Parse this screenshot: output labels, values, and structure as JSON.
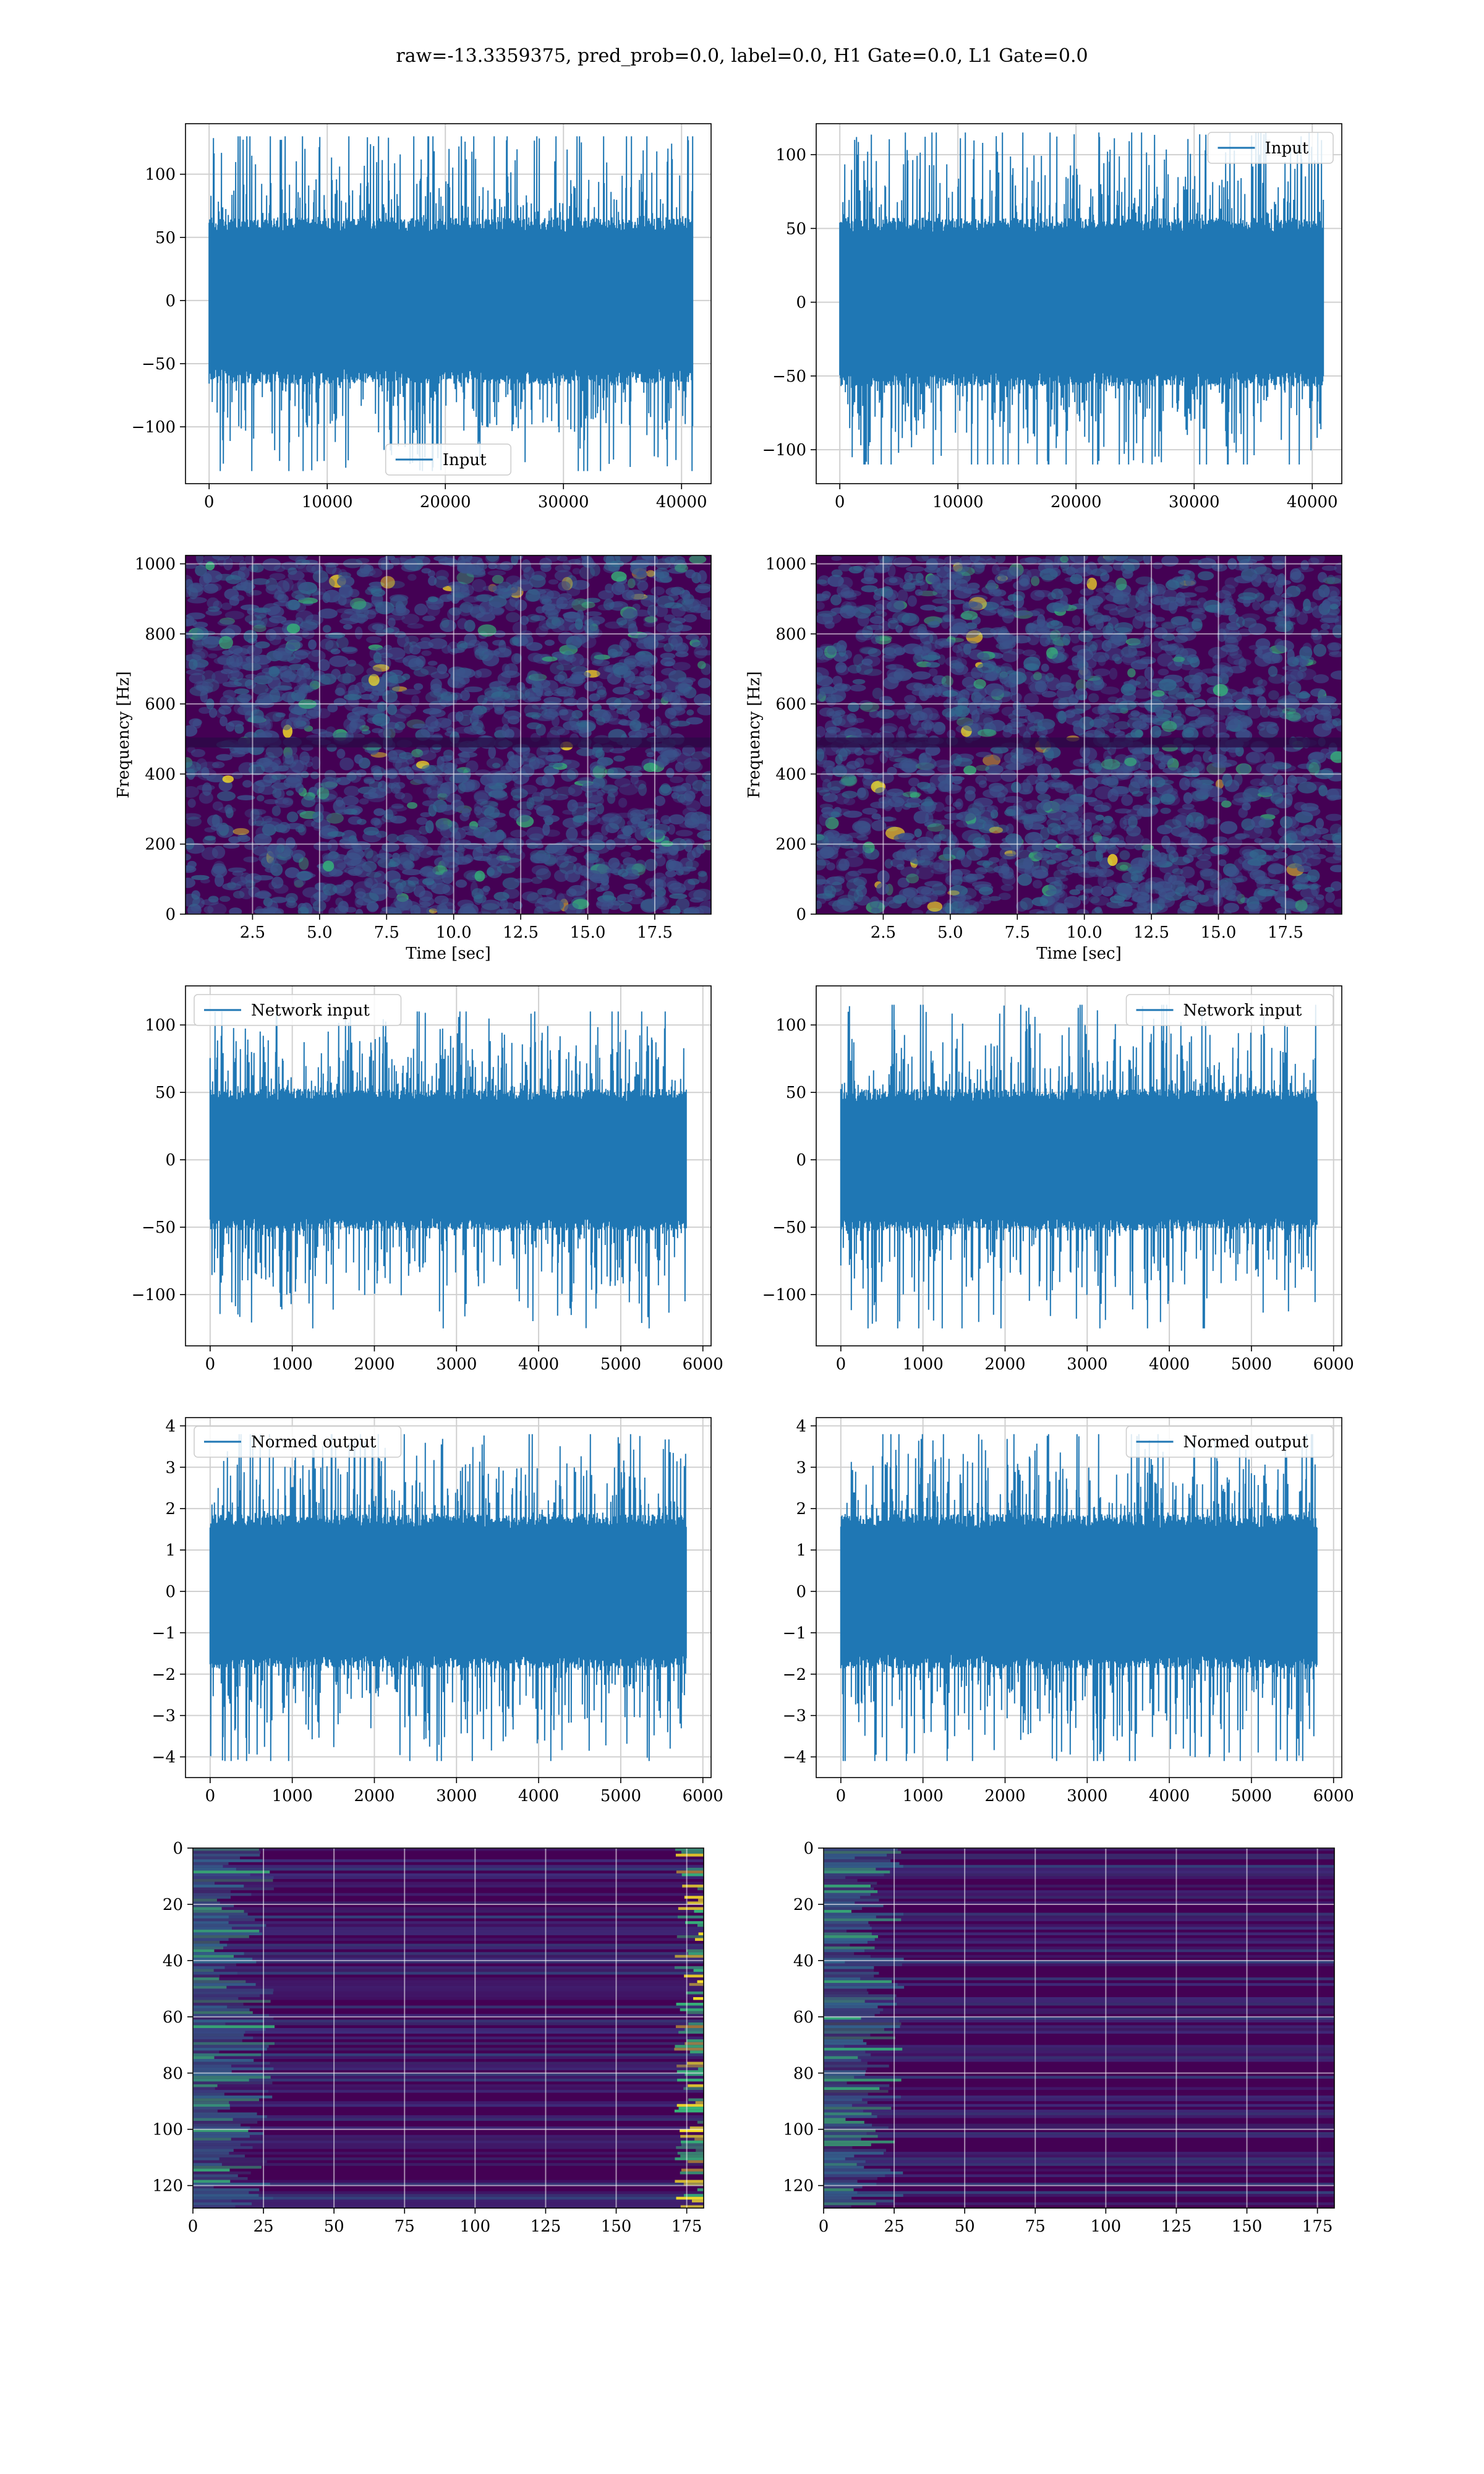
{
  "suptitle": "raw=-13.3359375, pred_prob=0.0, label=0.0, H1 Gate=0.0, L1 Gate=0.0",
  "colors": {
    "line": "#1f77b4",
    "grid": "#d0d0d0",
    "viridis_dark": "#440154",
    "viridis_mid": "#31688e",
    "viridis_teal": "#35b779",
    "viridis_yellow": "#fde725"
  },
  "chart_data": [
    {
      "id": "input-left",
      "type": "line",
      "legend": "Input",
      "legend_loc": "lower-center",
      "xlim": [
        -2000,
        42500
      ],
      "ylim": [
        -145,
        140
      ],
      "xticks": [
        0,
        10000,
        20000,
        30000,
        40000
      ],
      "xtick_labels": [
        "0",
        "10000",
        "20000",
        "30000",
        "40000"
      ],
      "yticks": [
        -100,
        -50,
        0,
        50,
        100
      ],
      "ytick_labels": [
        "−100",
        "−50",
        "0",
        "50",
        "100"
      ],
      "xlabel": "",
      "ylabel": "",
      "grid": true,
      "series": {
        "x_start": 0,
        "x_end": 40960,
        "amp_p99": 60,
        "amp_max": 130,
        "amp_min": -135
      }
    },
    {
      "id": "input-right",
      "type": "line",
      "legend": "Input",
      "legend_loc": "upper-right",
      "xlim": [
        -2000,
        42500
      ],
      "ylim": [
        -123,
        121
      ],
      "xticks": [
        0,
        10000,
        20000,
        30000,
        40000
      ],
      "xtick_labels": [
        "0",
        "10000",
        "20000",
        "30000",
        "40000"
      ],
      "yticks": [
        -100,
        -50,
        0,
        50,
        100
      ],
      "ytick_labels": [
        "−100",
        "−50",
        "0",
        "50",
        "100"
      ],
      "xlabel": "",
      "ylabel": "",
      "grid": true,
      "series": {
        "x_start": 0,
        "x_end": 40960,
        "amp_p99": 52,
        "amp_max": 115,
        "amp_min": -110
      }
    },
    {
      "id": "spectrogram-left",
      "type": "heatmap",
      "colormap": "viridis",
      "xlim": [
        0,
        19.6
      ],
      "ylim": [
        0,
        1024
      ],
      "xticks": [
        2.5,
        5.0,
        7.5,
        10.0,
        12.5,
        15.0,
        17.5
      ],
      "xtick_labels": [
        "2.5",
        "5.0",
        "7.5",
        "10.0",
        "12.5",
        "15.0",
        "17.5"
      ],
      "yticks": [
        0,
        200,
        400,
        600,
        800,
        1000
      ],
      "ytick_labels": [
        "0",
        "200",
        "400",
        "600",
        "800",
        "1000"
      ],
      "xlabel": "Time [sec]",
      "ylabel": "Frequency [Hz]",
      "grid": true
    },
    {
      "id": "spectrogram-right",
      "type": "heatmap",
      "colormap": "viridis",
      "xlim": [
        0,
        19.6
      ],
      "ylim": [
        0,
        1024
      ],
      "xticks": [
        2.5,
        5.0,
        7.5,
        10.0,
        12.5,
        15.0,
        17.5
      ],
      "xtick_labels": [
        "2.5",
        "5.0",
        "7.5",
        "10.0",
        "12.5",
        "15.0",
        "17.5"
      ],
      "yticks": [
        0,
        200,
        400,
        600,
        800,
        1000
      ],
      "ytick_labels": [
        "0",
        "200",
        "400",
        "600",
        "800",
        "1000"
      ],
      "xlabel": "Time [sec]",
      "ylabel": "Frequency [Hz]",
      "grid": true
    },
    {
      "id": "network-input-left",
      "type": "line",
      "legend": "Network input",
      "legend_loc": "upper-left",
      "xlim": [
        -300,
        6100
      ],
      "ylim": [
        -138,
        129
      ],
      "xticks": [
        0,
        1000,
        2000,
        3000,
        4000,
        5000,
        6000
      ],
      "xtick_labels": [
        "0",
        "1000",
        "2000",
        "3000",
        "4000",
        "5000",
        "6000"
      ],
      "yticks": [
        -100,
        -50,
        0,
        50,
        100
      ],
      "ytick_labels": [
        "−100",
        "−50",
        "0",
        "50",
        "100"
      ],
      "xlabel": "",
      "ylabel": "",
      "grid": true,
      "series": {
        "x_start": 0,
        "x_end": 5800,
        "amp_p99": 48,
        "amp_max": 110,
        "amp_min": -125
      }
    },
    {
      "id": "network-input-right",
      "type": "line",
      "legend": "Network input",
      "legend_loc": "upper-right",
      "xlim": [
        -300,
        6100
      ],
      "ylim": [
        -138,
        129
      ],
      "xticks": [
        0,
        1000,
        2000,
        3000,
        4000,
        5000,
        6000
      ],
      "xtick_labels": [
        "0",
        "1000",
        "2000",
        "3000",
        "4000",
        "5000",
        "6000"
      ],
      "yticks": [
        -100,
        -50,
        0,
        50,
        100
      ],
      "ytick_labels": [
        "−100",
        "−50",
        "0",
        "50",
        "100"
      ],
      "xlabel": "",
      "ylabel": "",
      "grid": true,
      "series": {
        "x_start": 0,
        "x_end": 5800,
        "amp_p99": 48,
        "amp_max": 115,
        "amp_min": -125
      }
    },
    {
      "id": "normed-output-left",
      "type": "line",
      "legend": "Normed output",
      "legend_loc": "upper-left",
      "xlim": [
        -300,
        6100
      ],
      "ylim": [
        -4.5,
        4.2
      ],
      "xticks": [
        0,
        1000,
        2000,
        3000,
        4000,
        5000,
        6000
      ],
      "xtick_labels": [
        "0",
        "1000",
        "2000",
        "3000",
        "4000",
        "5000",
        "6000"
      ],
      "yticks": [
        -4,
        -3,
        -2,
        -1,
        0,
        1,
        2,
        3,
        4
      ],
      "ytick_labels": [
        "−4",
        "−3",
        "−2",
        "−1",
        "0",
        "1",
        "2",
        "3",
        "4"
      ],
      "xlabel": "",
      "ylabel": "",
      "grid": true,
      "series": {
        "x_start": 0,
        "x_end": 5800,
        "amp_p99": 1.7,
        "amp_max": 3.8,
        "amp_min": -4.1
      }
    },
    {
      "id": "normed-output-right",
      "type": "line",
      "legend": "Normed output",
      "legend_loc": "upper-right",
      "xlim": [
        -300,
        6100
      ],
      "ylim": [
        -4.5,
        4.2
      ],
      "xticks": [
        0,
        1000,
        2000,
        3000,
        4000,
        5000,
        6000
      ],
      "xtick_labels": [
        "0",
        "1000",
        "2000",
        "3000",
        "4000",
        "5000",
        "6000"
      ],
      "yticks": [
        -4,
        -3,
        -2,
        -1,
        0,
        1,
        2,
        3,
        4
      ],
      "ytick_labels": [
        "−4",
        "−3",
        "−2",
        "−1",
        "0",
        "1",
        "2",
        "3",
        "4"
      ],
      "xlabel": "",
      "ylabel": "",
      "grid": true,
      "series": {
        "x_start": 0,
        "x_end": 5800,
        "amp_p99": 1.7,
        "amp_max": 3.8,
        "amp_min": -4.1
      }
    },
    {
      "id": "feature-map-left",
      "type": "heatmap",
      "colormap": "viridis",
      "xlim": [
        0,
        181
      ],
      "ylim": [
        128,
        0
      ],
      "xticks": [
        0,
        25,
        50,
        75,
        100,
        125,
        150,
        175
      ],
      "xtick_labels": [
        "0",
        "25",
        "50",
        "75",
        "100",
        "125",
        "150",
        "175"
      ],
      "yticks": [
        0,
        20,
        40,
        60,
        80,
        100,
        120
      ],
      "ytick_labels": [
        "0",
        "20",
        "40",
        "60",
        "80",
        "100",
        "120"
      ],
      "xlabel": "",
      "ylabel": "",
      "grid": true
    },
    {
      "id": "feature-map-right",
      "type": "heatmap",
      "colormap": "viridis",
      "xlim": [
        0,
        181
      ],
      "ylim": [
        128,
        0
      ],
      "xticks": [
        0,
        25,
        50,
        75,
        100,
        125,
        150,
        175
      ],
      "xtick_labels": [
        "0",
        "25",
        "50",
        "75",
        "100",
        "125",
        "150",
        "175"
      ],
      "yticks": [
        0,
        20,
        40,
        60,
        80,
        100,
        120
      ],
      "ytick_labels": [
        "0",
        "20",
        "40",
        "60",
        "80",
        "100",
        "120"
      ],
      "xlabel": "",
      "ylabel": "",
      "grid": true
    }
  ]
}
